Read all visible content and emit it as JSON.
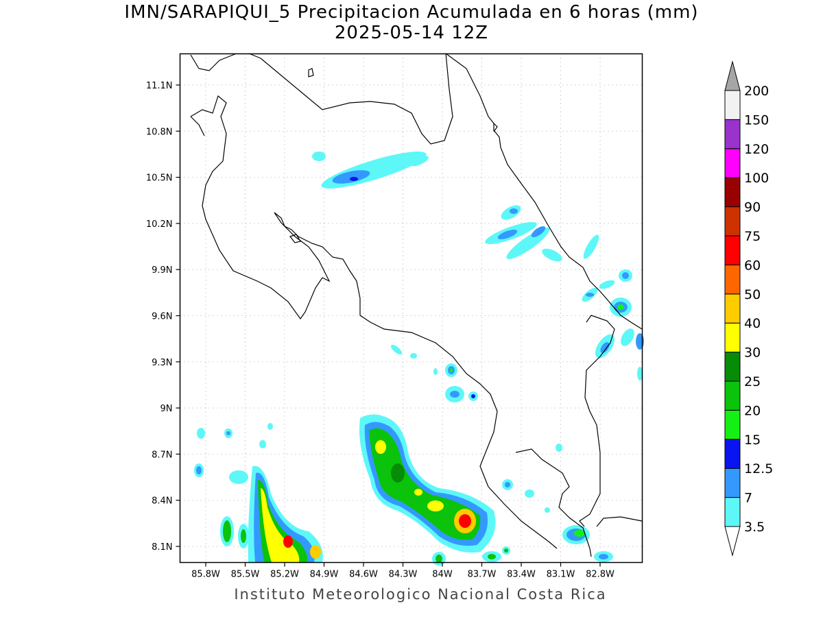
{
  "title_line1": "IMN/SARAPIQUI_5 Precipitacion Acumulada en 6 horas (mm)",
  "title_line2": "2025-05-14 12Z",
  "footer": "Instituto Meteorologico Nacional Costa Rica",
  "lon_labels": [
    "85.8W",
    "85.5W",
    "85.2W",
    "84.9W",
    "84.6W",
    "84.3W",
    "84W",
    "83.7W",
    "83.4W",
    "83.1W",
    "82.8W"
  ],
  "lat_labels": [
    "11.1N",
    "10.8N",
    "10.5N",
    "10.2N",
    "9.9N",
    "9.6N",
    "9.3N",
    "9N",
    "8.7N",
    "8.4N",
    "8.1N"
  ],
  "colorbar": {
    "labels": [
      "3.5",
      "7",
      "12.5",
      "15",
      "20",
      "25",
      "30",
      "40",
      "50",
      "60",
      "75",
      "90",
      "100",
      "120",
      "150",
      "200"
    ],
    "colors": [
      "#ffffff",
      "#5ef7f7",
      "#3399ff",
      "#0a14f0",
      "#14f014",
      "#0ac30a",
      "#078c07",
      "#ffff00",
      "#ffcc00",
      "#ff6600",
      "#ff0000",
      "#cc3300",
      "#990000",
      "#ff00ff",
      "#9933cc",
      "#f2f2f2",
      "#a6a6a6"
    ]
  }
}
